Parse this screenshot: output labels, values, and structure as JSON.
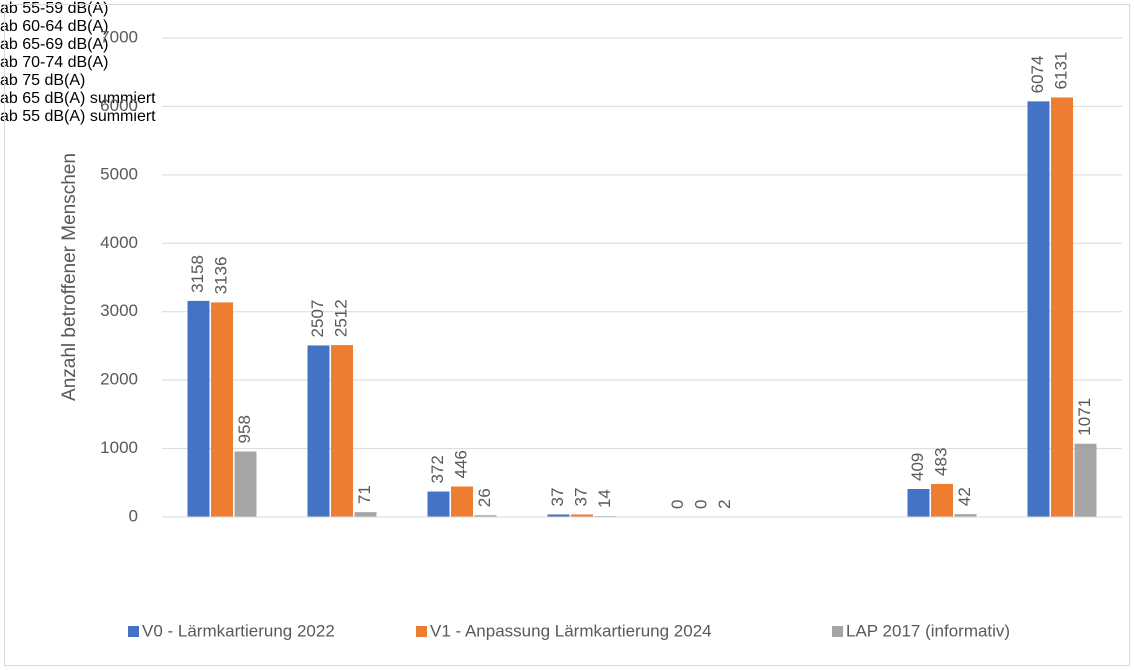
{
  "chart_data": {
    "type": "bar",
    "y_label": "Anzahl betroffener Menschen",
    "categories": [
      "ab 55-59 dB(A)",
      "ab 60-64 dB(A)",
      "ab 65-69 dB(A)",
      "ab 70-74 dB(A)",
      "ab 75 dB(A)",
      null,
      "ab 65 dB(A) summiert",
      "ab 55 dB(A) summiert"
    ],
    "series": [
      {
        "name": "V0 - Lärmkartierung 2022",
        "color": "#4472c4",
        "values": [
          3158,
          2507,
          372,
          37,
          0,
          null,
          409,
          6074
        ]
      },
      {
        "name": "V1 - Anpassung Lärmkartierung 2024",
        "color": "#ed7d31",
        "values": [
          3136,
          2512,
          446,
          37,
          0,
          null,
          483,
          6131
        ]
      },
      {
        "name": "LAP 2017 (informativ)",
        "color": "#a5a5a5",
        "values": [
          958,
          71,
          26,
          14,
          2,
          null,
          42,
          1071
        ]
      }
    ],
    "ylim": [
      0,
      7000
    ],
    "yticks": [
      0,
      1000,
      2000,
      3000,
      4000,
      5000,
      6000,
      7000
    ],
    "grid": true,
    "legend": "bottom"
  }
}
